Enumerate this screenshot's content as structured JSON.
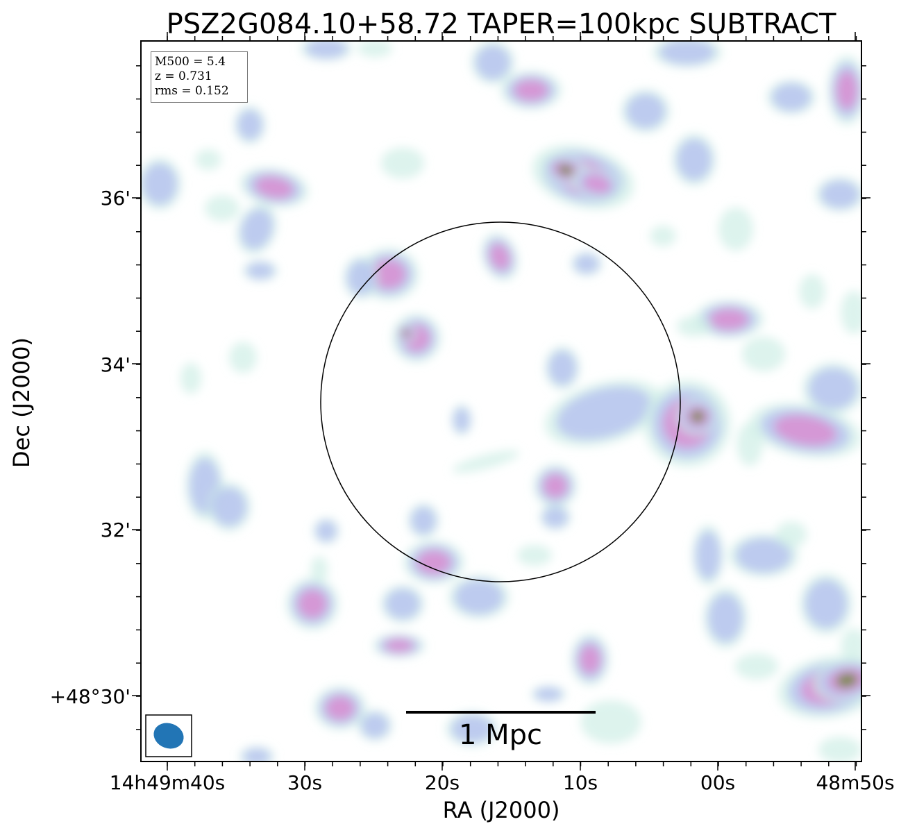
{
  "chart_data": {
    "type": "heatmap",
    "title": "PSZ2G084.10+58.72 TAPER=100kpc SUBTRACT",
    "xlabel": "RA (J2000)",
    "ylabel": "Dec (J2000)",
    "x_ticks": [
      "14h49m40s",
      "30s",
      "20s",
      "10s",
      "00s",
      "48m50s"
    ],
    "y_ticks": [
      "36'",
      "34'",
      "32'",
      "+48°30'"
    ],
    "annotations": {
      "m500": "M500 = 5.4",
      "z": "z = 0.731",
      "rms": "rms = 0.152"
    },
    "scalebar_label": "1 Mpc",
    "beam": "restoring beam ellipse",
    "circle": "R500 circle centred on cluster",
    "colors": {
      "low": "#cfeee6",
      "mid": "#b7c4f0",
      "high": "#d98fd2",
      "peak": "#6e8a30",
      "beam": "#2275b5"
    }
  }
}
